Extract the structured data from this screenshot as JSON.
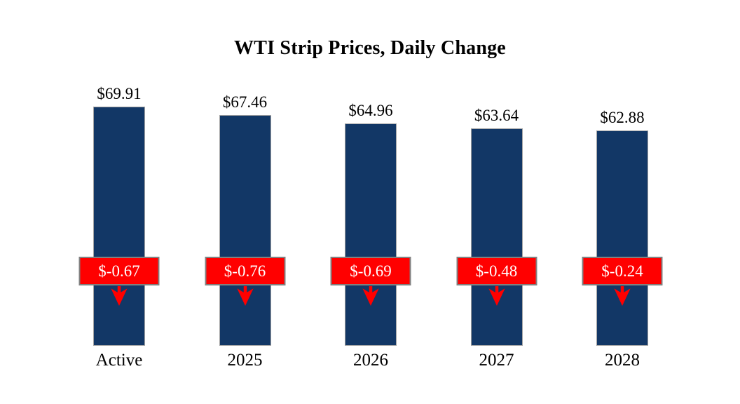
{
  "colors": {
    "bar": "#123766",
    "bar_border": "#a3a3a3",
    "badge": "#ff0000",
    "badge_border": "#808080",
    "badge_text": "#ffffff",
    "text": "#000000",
    "background": "#ffffff"
  },
  "chart_data": {
    "type": "bar",
    "title": "WTI Strip Prices, Daily Change",
    "categories": [
      "Active",
      "2025",
      "2026",
      "2027",
      "2028"
    ],
    "series": [
      {
        "name": "Strip Price",
        "values": [
          69.91,
          67.46,
          64.96,
          63.64,
          62.88
        ],
        "labels": [
          "$69.91",
          "$67.46",
          "$64.96",
          "$63.64",
          "$62.88"
        ]
      },
      {
        "name": "Daily Change",
        "values": [
          -0.67,
          -0.76,
          -0.69,
          -0.48,
          -0.24
        ],
        "labels": [
          "$-0.67",
          "$-0.76",
          "$-0.69",
          "$-0.48",
          "$-0.24"
        ]
      }
    ],
    "xlabel": "",
    "ylabel": "",
    "ylim": [
      0,
      69.91
    ],
    "grid": false,
    "legend": false,
    "axis_lines": false
  }
}
